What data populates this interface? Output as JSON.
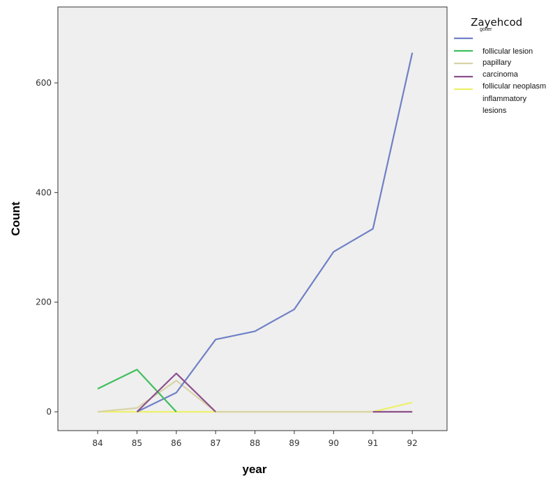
{
  "chart_data": {
    "type": "line",
    "xlabel": "year",
    "ylabel": "Count",
    "x": [
      84,
      85,
      86,
      87,
      88,
      89,
      90,
      91,
      92
    ],
    "ylim": [
      -35,
      740
    ],
    "yticks": [
      0,
      200,
      400,
      600
    ],
    "grid": false,
    "legend": {
      "title": "Zayehcod",
      "placement": "right"
    },
    "series": [
      {
        "name": "goiter",
        "color": "#6f80c6",
        "values": [
          null,
          0,
          35,
          132,
          147,
          187,
          292,
          334,
          655
        ]
      },
      {
        "name": "follicular lesion",
        "color": "#3fbf5d",
        "values": [
          42,
          77,
          0,
          null,
          null,
          null,
          null,
          null,
          null
        ]
      },
      {
        "name": "papillary",
        "color": "#d8d3a8",
        "values": [
          0,
          7,
          57,
          0,
          0,
          0,
          0,
          0,
          0
        ]
      },
      {
        "name": "carcinoma",
        "color": "#8c4f8c",
        "values": [
          null,
          0,
          70,
          0,
          null,
          null,
          null,
          0,
          0
        ]
      },
      {
        "name": "follicular neoplasm",
        "color": "#eef06a",
        "values": [
          0,
          0,
          0,
          0,
          0,
          0,
          0,
          0,
          17
        ]
      },
      {
        "name": "inflammatory lesions",
        "color": "#eef06a",
        "values": [
          null,
          null,
          null,
          null,
          null,
          null,
          null,
          null,
          null
        ]
      }
    ],
    "legend_entries": [
      {
        "label": "goiter",
        "color": "#6f80c6",
        "small": true
      },
      {
        "label": "follicular lesion",
        "color": "#3fbf5d"
      },
      {
        "label": "papillary",
        "color": "#d8d3a8"
      },
      {
        "label": "carcinoma",
        "color": "#8c4f8c"
      },
      {
        "label": "follicular neoplasm",
        "color": "#eef06a"
      },
      {
        "label": "inflammatory",
        "color": null
      },
      {
        "label": "lesions",
        "color": null
      }
    ]
  }
}
